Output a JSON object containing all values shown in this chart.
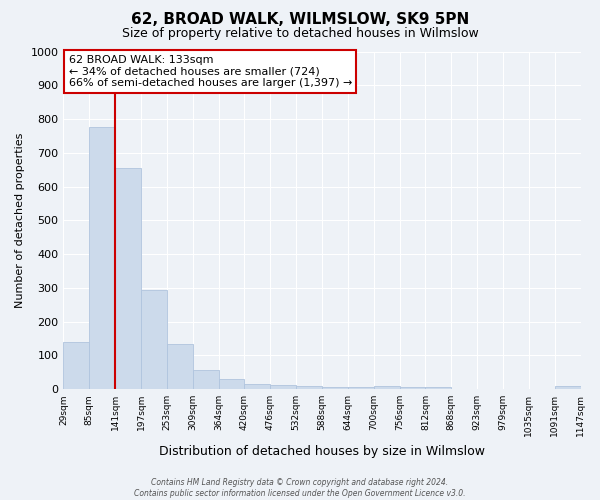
{
  "title": "62, BROAD WALK, WILMSLOW, SK9 5PN",
  "subtitle": "Size of property relative to detached houses in Wilmslow",
  "xlabel": "Distribution of detached houses by size in Wilmslow",
  "ylabel": "Number of detached properties",
  "bar_values": [
    140,
    775,
    655,
    293,
    135,
    57,
    30,
    15,
    12,
    10,
    5,
    5,
    10,
    5,
    5,
    0,
    0,
    0,
    0,
    10
  ],
  "bin_labels": [
    "29sqm",
    "85sqm",
    "141sqm",
    "197sqm",
    "253sqm",
    "309sqm",
    "364sqm",
    "420sqm",
    "476sqm",
    "532sqm",
    "588sqm",
    "644sqm",
    "700sqm",
    "756sqm",
    "812sqm",
    "868sqm",
    "923sqm",
    "979sqm",
    "1035sqm",
    "1091sqm",
    "1147sqm"
  ],
  "bar_color": "#ccdaeb",
  "bar_edge_color": "#b0c4de",
  "vline_color": "#cc0000",
  "annotation_title": "62 BROAD WALK: 133sqm",
  "annotation_line1": "← 34% of detached houses are smaller (724)",
  "annotation_line2": "66% of semi-detached houses are larger (1,397) →",
  "annotation_box_color": "#ffffff",
  "annotation_box_edge": "#cc0000",
  "ylim": [
    0,
    1000
  ],
  "yticks": [
    0,
    100,
    200,
    300,
    400,
    500,
    600,
    700,
    800,
    900,
    1000
  ],
  "background_color": "#eef2f7",
  "grid_color": "#ffffff",
  "footer_line1": "Contains HM Land Registry data © Crown copyright and database right 2024.",
  "footer_line2": "Contains public sector information licensed under the Open Government Licence v3.0."
}
